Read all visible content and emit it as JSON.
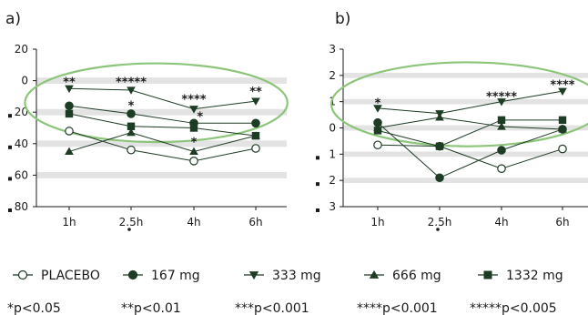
{
  "colors": {
    "series": "#1e3b24",
    "band": "#e3e3e3",
    "ellipse": "#8cc57a",
    "axis": "#1a1a1a"
  },
  "chart_data": [
    {
      "panel_label": "a)",
      "type": "line",
      "categories": [
        "1h",
        "2.5h",
        "4h",
        "6h"
      ],
      "ylim": [
        -80,
        20
      ],
      "y_ticks": [
        -80,
        -60,
        -40,
        -20,
        0,
        20
      ],
      "y_tick_labels": [
        "80",
        "60",
        "40",
        "20",
        "0",
        "20"
      ],
      "y_tick_neg_marks": [
        true,
        true,
        true,
        true,
        false,
        false
      ],
      "x_tick_dots": [
        false,
        true,
        false,
        false
      ],
      "bands": [
        [
          -2,
          2
        ],
        [
          -22,
          -18
        ],
        [
          -42,
          -38
        ],
        [
          -62,
          -58
        ]
      ],
      "ellipse": {
        "cx": 2.4,
        "cy": -14,
        "rx": 2.12,
        "ry": 25
      },
      "series": [
        {
          "name": "PLACEBO",
          "marker": "circle-open",
          "values": [
            -32,
            -44,
            -51,
            -43
          ]
        },
        {
          "name": "167 mg",
          "marker": "circle",
          "values": [
            -16,
            -21,
            -27,
            -27
          ]
        },
        {
          "name": "333 mg",
          "marker": "triangle-down",
          "values": [
            -5,
            -6,
            -18,
            -13
          ]
        },
        {
          "name": "666 mg",
          "marker": "triangle-up",
          "values": [
            -45,
            -33,
            -45,
            -35
          ]
        },
        {
          "name": "1332 mg",
          "marker": "square",
          "values": [
            -21,
            -29,
            -30,
            -35
          ]
        }
      ],
      "annotations": [
        {
          "text": "**",
          "x": 1,
          "y": 0
        },
        {
          "text": "*****",
          "x": 2,
          "y": 0
        },
        {
          "text": "*",
          "x": 2,
          "y": -15
        },
        {
          "text": "****",
          "x": 3,
          "y": -11
        },
        {
          "text": "*",
          "x": 3.1,
          "y": -22
        },
        {
          "text": "*",
          "x": 3,
          "y": -38
        },
        {
          "text": "**",
          "x": 4,
          "y": -6
        }
      ]
    },
    {
      "panel_label": "b)",
      "type": "line",
      "categories": [
        "1h",
        "2.5h",
        "4h",
        "6h"
      ],
      "ylim": [
        -3,
        3
      ],
      "y_ticks": [
        -3,
        -2,
        -1,
        0,
        1,
        2,
        3
      ],
      "y_tick_labels": [
        "3",
        "2",
        "1",
        "0",
        "1",
        "2",
        "3"
      ],
      "y_tick_neg_marks": [
        true,
        true,
        true,
        false,
        false,
        false,
        false
      ],
      "x_tick_dots": [
        false,
        true,
        false,
        false
      ],
      "bands": [
        [
          1.9,
          2.1
        ],
        [
          0.9,
          1.1
        ],
        [
          -0.1,
          0.1
        ],
        [
          -1.1,
          -0.9
        ],
        [
          -2.1,
          -1.9
        ]
      ],
      "ellipse": {
        "cx": 2.45,
        "cy": 0.9,
        "rx": 2.2,
        "ry": 1.6
      },
      "series": [
        {
          "name": "PLACEBO",
          "marker": "circle-open",
          "values": [
            -0.65,
            -0.7,
            -1.55,
            -0.8
          ]
        },
        {
          "name": "167 mg",
          "marker": "circle",
          "values": [
            0.2,
            -1.9,
            -0.85,
            -0.05
          ]
        },
        {
          "name": "333 mg",
          "marker": "triangle-down",
          "values": [
            0.75,
            0.55,
            1.0,
            1.4
          ]
        },
        {
          "name": "666 mg",
          "marker": "triangle-up",
          "values": [
            0.0,
            0.4,
            0.05,
            -0.05
          ]
        },
        {
          "name": "1332 mg",
          "marker": "square",
          "values": [
            -0.1,
            -0.7,
            0.3,
            0.3
          ]
        }
      ],
      "annotations": [
        {
          "text": "*",
          "x": 1,
          "y": 1.0
        },
        {
          "text": "*****",
          "x": 3,
          "y": 1.25
        },
        {
          "text": "****",
          "x": 4,
          "y": 1.7
        }
      ]
    }
  ],
  "legend": [
    {
      "label": "PLACEBO",
      "marker": "circle-open"
    },
    {
      "label": "167 mg",
      "marker": "circle"
    },
    {
      "label": "333 mg",
      "marker": "triangle-down"
    },
    {
      "label": "666 mg",
      "marker": "triangle-up"
    },
    {
      "label": "1332 mg",
      "marker": "square"
    }
  ],
  "significance": [
    {
      "stars": "*",
      "label": "p<0.05"
    },
    {
      "stars": "**",
      "label": "p<0.01"
    },
    {
      "stars": "***",
      "label": "p<0.001"
    },
    {
      "stars": "****",
      "label": "p<0.001"
    },
    {
      "stars": "*****",
      "label": "p<0.005"
    }
  ]
}
